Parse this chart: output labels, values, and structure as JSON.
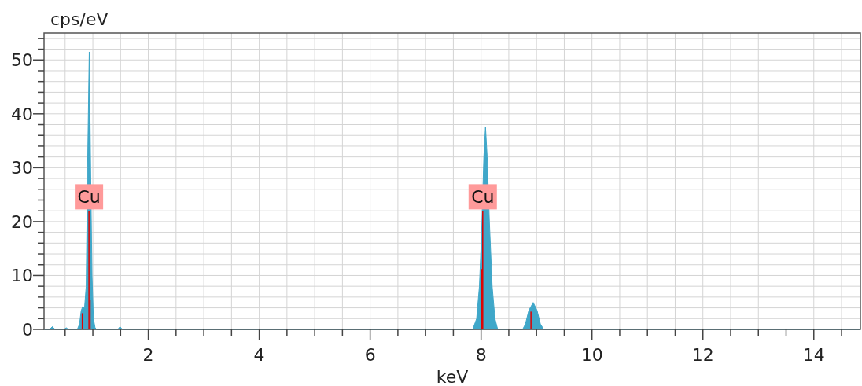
{
  "chart_data": {
    "type": "area",
    "xlabel": "keV",
    "ylabel": "cps/eV",
    "xlim": [
      0.12,
      14.84
    ],
    "ylim": [
      0,
      55
    ],
    "xticks": [
      {
        "value": 0.5,
        "label": null
      },
      {
        "value": 1,
        "label": null
      },
      {
        "value": 1.5,
        "label": null
      },
      2,
      {
        "value": 2.5,
        "label": null
      },
      {
        "value": 3,
        "label": null
      },
      {
        "value": 3.5,
        "label": null
      },
      4,
      {
        "value": 4.5,
        "label": null
      },
      {
        "value": 5,
        "label": null
      },
      {
        "value": 5.5,
        "label": null
      },
      6,
      {
        "value": 6.5,
        "label": null
      },
      {
        "value": 7,
        "label": null
      },
      {
        "value": 7.5,
        "label": null
      },
      8,
      {
        "value": 8.5,
        "label": null
      },
      {
        "value": 9,
        "label": null
      },
      {
        "value": 9.5,
        "label": null
      },
      10,
      {
        "value": 10.5,
        "label": null
      },
      {
        "value": 11,
        "label": null
      },
      {
        "value": 11.5,
        "label": null
      },
      12,
      {
        "value": 12.5,
        "label": null
      },
      {
        "value": 13,
        "label": null
      },
      {
        "value": 13.5,
        "label": null
      },
      14,
      {
        "value": 14.5,
        "label": null
      }
    ],
    "yticks": [
      0,
      {
        "value": 2,
        "label": null
      },
      {
        "value": 4,
        "label": null
      },
      {
        "value": 6,
        "label": null
      },
      {
        "value": 8,
        "label": null
      },
      10,
      {
        "value": 12,
        "label": null
      },
      {
        "value": 14,
        "label": null
      },
      {
        "value": 16,
        "label": null
      },
      {
        "value": 18,
        "label": null
      },
      20,
      {
        "value": 22,
        "label": null
      },
      {
        "value": 24,
        "label": null
      },
      {
        "value": 26,
        "label": null
      },
      {
        "value": 28,
        "label": null
      },
      30,
      {
        "value": 32,
        "label": null
      },
      {
        "value": 34,
        "label": null
      },
      {
        "value": 36,
        "label": null
      },
      {
        "value": 38,
        "label": null
      },
      40,
      {
        "value": 42,
        "label": null
      },
      {
        "value": 44,
        "label": null
      },
      {
        "value": 46,
        "label": null
      },
      {
        "value": 48,
        "label": null
      },
      50,
      {
        "value": 52,
        "label": null
      },
      {
        "value": 54,
        "label": null
      }
    ],
    "grid": true,
    "series": [
      {
        "color": "#3fa7c9",
        "x": [
          0.12,
          0.22,
          0.27,
          0.32,
          0.48,
          0.52,
          0.56,
          0.72,
          0.76,
          0.79,
          0.82,
          0.85,
          0.88,
          0.905,
          0.935,
          0.96,
          0.985,
          1.01,
          1.04,
          1.07,
          1.45,
          1.49,
          1.53,
          7.85,
          7.92,
          7.97,
          8.01,
          8.05,
          8.08,
          8.11,
          8.15,
          8.2,
          8.25,
          8.3,
          8.75,
          8.8,
          8.86,
          8.94,
          9.01,
          9.07,
          9.13,
          14.84
        ],
        "values": [
          0,
          0,
          0.5,
          0,
          0,
          0.3,
          0,
          0,
          1,
          3.5,
          4.3,
          4,
          8,
          30,
          51.5,
          30,
          10,
          2,
          0.3,
          0,
          0,
          0.5,
          0,
          0,
          2,
          8,
          18,
          32,
          37.6,
          32,
          20,
          8,
          2,
          0,
          0,
          1,
          3.5,
          5,
          3.5,
          1,
          0,
          0
        ]
      },
      {
        "type": "bar",
        "color": "#e00000",
        "x": [
          0.81,
          0.93,
          0.95,
          8.01,
          8.03,
          8.9
        ],
        "values": [
          3,
          22,
          5.4,
          11.2,
          22,
          3.3
        ]
      }
    ],
    "annotations": [
      {
        "text": "Cu",
        "x": 0.93,
        "y": 24.6
      },
      {
        "text": "Cu",
        "x": 8.03,
        "y": 24.6
      }
    ]
  }
}
